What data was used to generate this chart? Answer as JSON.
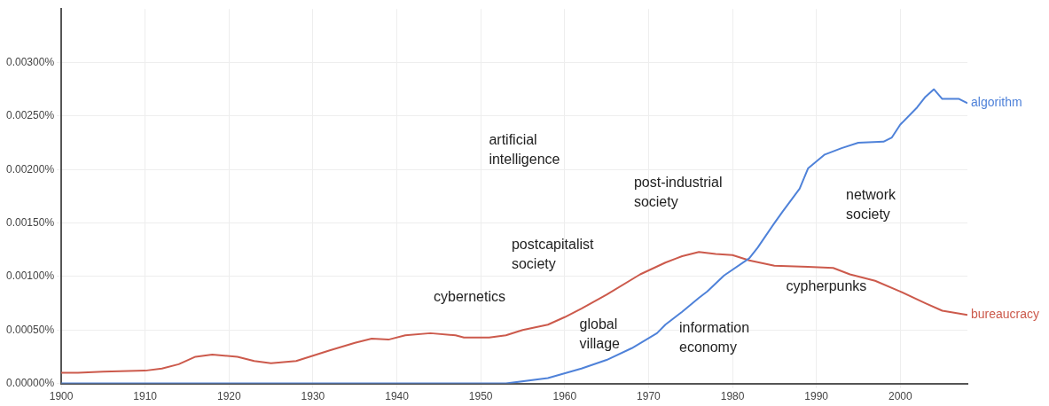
{
  "chart_data": {
    "type": "line",
    "xlim": [
      1900,
      2008
    ],
    "xticks": [
      1900,
      1910,
      1920,
      1930,
      1940,
      1950,
      1960,
      1970,
      1980,
      1990,
      2000
    ],
    "ylim": [
      0,
      0.0035
    ],
    "yticks": [
      {
        "value": 0,
        "label": "0.00000%"
      },
      {
        "value": 0.0005,
        "label": "0.00050%"
      },
      {
        "value": 0.001,
        "label": "0.00100%"
      },
      {
        "value": 0.0015,
        "label": "0.00150%"
      },
      {
        "value": 0.002,
        "label": "0.00200%"
      },
      {
        "value": 0.0025,
        "label": "0.00250%"
      },
      {
        "value": 0.003,
        "label": "0.00300%"
      }
    ],
    "grid": true,
    "legend": false,
    "marker": "none",
    "line_style": "solid",
    "series": [
      {
        "name": "algorithm",
        "color": "#4f82d9",
        "x": [
          1900,
          1920,
          1940,
          1944,
          1950,
          1953,
          1958,
          1962,
          1965,
          1968,
          1971,
          1972,
          1974,
          1976,
          1977,
          1979,
          1982,
          1983,
          1985,
          1986,
          1988,
          1989,
          1991,
          1993,
          1995,
          1998,
          1999,
          2000,
          2002,
          2003,
          2004,
          2005,
          2007,
          2008
        ],
        "values": [
          0,
          0,
          0,
          0,
          0,
          0,
          5e-05,
          0.00014,
          0.00022,
          0.00033,
          0.00047,
          0.00055,
          0.00067,
          0.0008,
          0.00086,
          0.00101,
          0.00117,
          0.00127,
          0.0015,
          0.00161,
          0.00182,
          0.00201,
          0.00214,
          0.0022,
          0.00225,
          0.00226,
          0.0023,
          0.00242,
          0.00258,
          0.00268,
          0.00275,
          0.00266,
          0.00266,
          0.00262
        ]
      },
      {
        "name": "bureaucracy",
        "color": "#cc5a4c",
        "x": [
          1900,
          1902,
          1905,
          1910,
          1912,
          1914,
          1916,
          1918,
          1921,
          1923,
          1925,
          1928,
          1930,
          1932,
          1935,
          1937,
          1939,
          1941,
          1944,
          1947,
          1948,
          1951,
          1953,
          1955,
          1958,
          1960,
          1962,
          1965,
          1969,
          1972,
          1974,
          1976,
          1978,
          1980,
          1982,
          1985,
          1989,
          1992,
          1994,
          1997,
          2000,
          2003,
          2005,
          2008
        ],
        "values": [
          0.0001,
          0.0001,
          0.00011,
          0.00012,
          0.00014,
          0.00018,
          0.00025,
          0.00027,
          0.00025,
          0.00021,
          0.00019,
          0.00021,
          0.00026,
          0.00031,
          0.00038,
          0.00042,
          0.00041,
          0.00045,
          0.00047,
          0.00045,
          0.00043,
          0.00043,
          0.00045,
          0.0005,
          0.00055,
          0.00062,
          0.0007,
          0.00083,
          0.00102,
          0.00113,
          0.00119,
          0.00123,
          0.00121,
          0.0012,
          0.00115,
          0.0011,
          0.00109,
          0.00108,
          0.00102,
          0.00096,
          0.00086,
          0.00075,
          0.00068,
          0.00064
        ]
      }
    ],
    "annotations": [
      "artificial\nintelligence",
      "post-industrial\nsociety",
      "network\nsociety",
      "postcapitalist\nsociety",
      "cybernetics",
      "cypherpunks",
      "global\nvillage",
      "information\neconomy"
    ]
  }
}
